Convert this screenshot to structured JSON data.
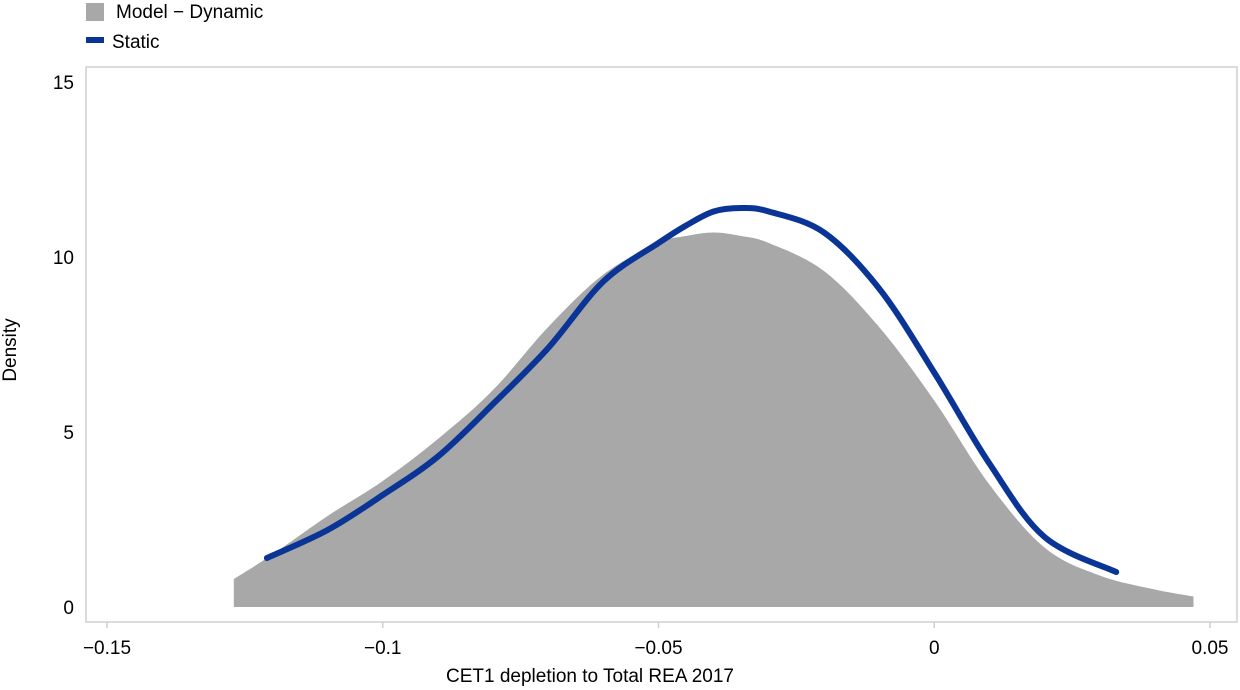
{
  "chart_data": {
    "type": "area",
    "title": "",
    "xlabel": "CET1 depletion to Total REA 2017",
    "ylabel": "Density",
    "xlim": [
      -0.15,
      0.05
    ],
    "ylim": [
      0,
      15
    ],
    "xticks": [
      {
        "value": -0.15,
        "label": "−0.15"
      },
      {
        "value": -0.1,
        "label": "−0.1"
      },
      {
        "value": -0.05,
        "label": "−0.05"
      },
      {
        "value": 0,
        "label": "0"
      },
      {
        "value": 0.05,
        "label": "0.05"
      }
    ],
    "yticks": [
      {
        "value": 0,
        "label": "0"
      },
      {
        "value": 5,
        "label": "5"
      },
      {
        "value": 10,
        "label": "10"
      },
      {
        "value": 15,
        "label": "15"
      }
    ],
    "grid": false,
    "legend_position": "top-left",
    "series": [
      {
        "name": "Model − Dynamic",
        "kind": "area",
        "color": "#a8a8a8",
        "x": [
          -0.127,
          -0.12,
          -0.11,
          -0.1,
          -0.09,
          -0.08,
          -0.07,
          -0.06,
          -0.05,
          -0.045,
          -0.04,
          -0.035,
          -0.03,
          -0.02,
          -0.01,
          0,
          0.01,
          0.02,
          0.03,
          0.04,
          0.047
        ],
        "y": [
          0.8,
          1.5,
          2.6,
          3.6,
          4.8,
          6.2,
          8.0,
          9.5,
          10.4,
          10.6,
          10.7,
          10.6,
          10.4,
          9.6,
          8.0,
          5.9,
          3.5,
          1.7,
          0.9,
          0.5,
          0.3
        ]
      },
      {
        "name": "Static",
        "kind": "line",
        "color": "#0a3596",
        "x": [
          -0.121,
          -0.11,
          -0.1,
          -0.09,
          -0.08,
          -0.07,
          -0.06,
          -0.05,
          -0.045,
          -0.04,
          -0.035,
          -0.03,
          -0.02,
          -0.01,
          0,
          0.01,
          0.02,
          0.033
        ],
        "y": [
          1.4,
          2.2,
          3.2,
          4.3,
          5.8,
          7.4,
          9.3,
          10.4,
          10.9,
          11.3,
          11.4,
          11.3,
          10.7,
          9.1,
          6.7,
          4.1,
          2.0,
          1.0
        ]
      }
    ]
  }
}
